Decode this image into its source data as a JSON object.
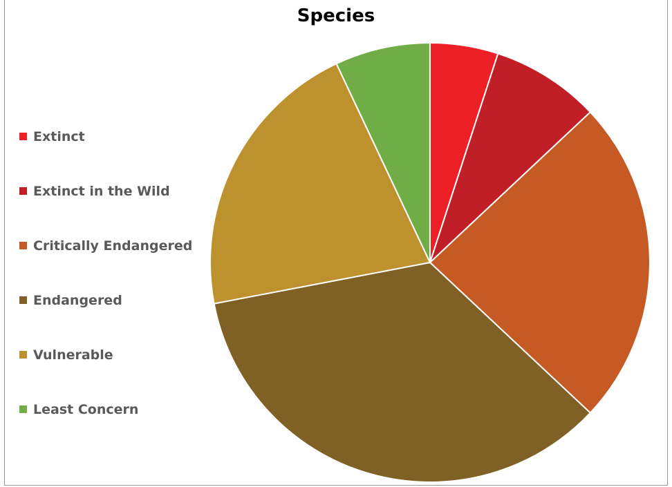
{
  "chart_data": {
    "type": "pie",
    "title": "Species",
    "legend_position": "left",
    "categories": [
      "Extinct",
      "Extinct in the Wild",
      "Critically Endangered",
      "Endangered",
      "Vulnerable",
      "Least Concern"
    ],
    "values": [
      5,
      8,
      24,
      35,
      21,
      7
    ],
    "colors": [
      "#ee2027",
      "#c01f27",
      "#c55a25",
      "#7f6126",
      "#be912f",
      "#71ad47"
    ]
  }
}
